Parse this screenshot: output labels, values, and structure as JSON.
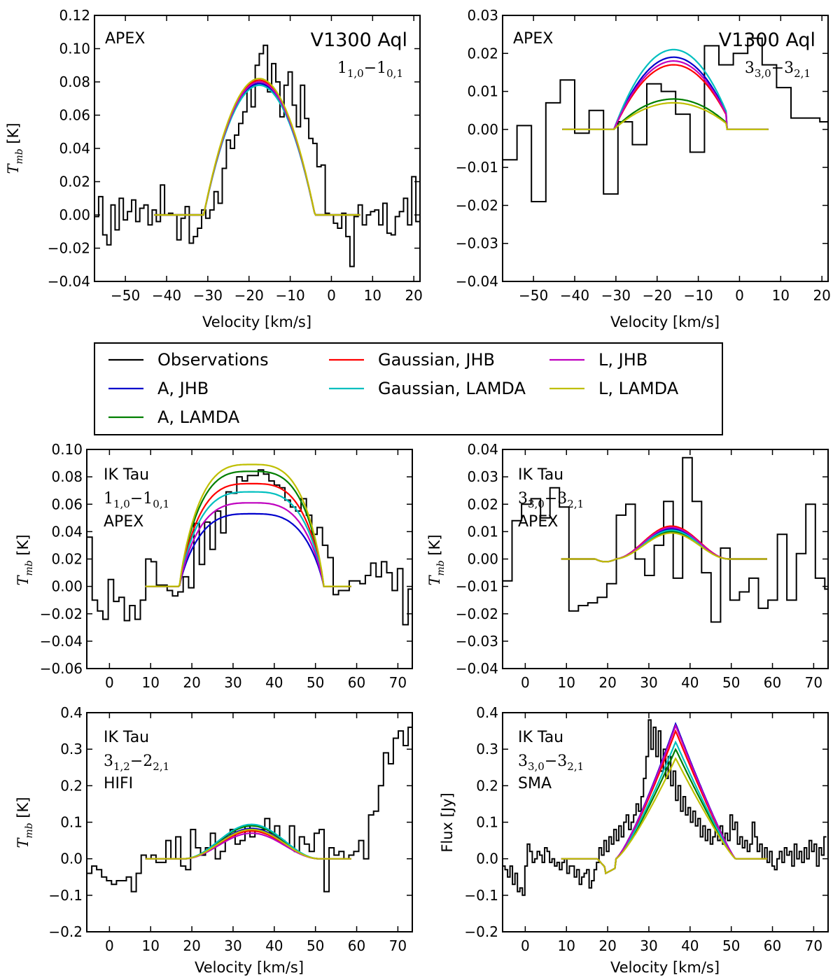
{
  "legend": {
    "items": [
      {
        "label": "Observations",
        "color": "#000000"
      },
      {
        "label": "A, JHB",
        "color": "#0000cc"
      },
      {
        "label": "A, LAMDA",
        "color": "#007f00"
      },
      {
        "label": "Gaussian, JHB",
        "color": "#ff0000"
      },
      {
        "label": "Gaussian, LAMDA",
        "color": "#00bfbf"
      },
      {
        "label": "L, JHB",
        "color": "#bf00bf"
      },
      {
        "label": "L, LAMDA",
        "color": "#bfbf00"
      }
    ]
  },
  "chart_data": [
    {
      "id": "v1300-110",
      "type": "line",
      "star": "V1300 Aql",
      "telescope": "APEX",
      "transition": {
        "a": "1",
        "asub": "1,0",
        "b": "1",
        "bsub": "0,1"
      },
      "xlabel": "Velocity [km/s]",
      "ylabel": {
        "main": "T",
        "sub": "mb",
        "unit": " [K]"
      },
      "xlim": [
        -57.5,
        21.5
      ],
      "ylim": [
        -0.04,
        0.12
      ],
      "xticks": [
        -50,
        -40,
        -30,
        -20,
        -10,
        0,
        10,
        20
      ],
      "yticks": [
        -0.04,
        -0.02,
        0.0,
        0.02,
        0.04,
        0.06,
        0.08,
        0.1,
        0.12
      ],
      "ytick_decimals": 2,
      "observations": {
        "x_start": -57.5,
        "x_step": 1.0,
        "values": [
          -0.001,
          0.011,
          -0.012,
          -0.018,
          0.006,
          -0.009,
          0.01,
          -0.003,
          0.002,
          0.009,
          -0.004,
          0.004,
          0.006,
          -0.006,
          0.003,
          -0.004,
          0.018,
          0.0,
          0.001,
          0.0,
          -0.015,
          -0.002,
          0.005,
          -0.017,
          -0.013,
          -0.008,
          0.003,
          -0.002,
          0.003,
          0.014,
          0.007,
          0.028,
          0.045,
          0.04,
          0.048,
          0.055,
          0.062,
          0.076,
          0.065,
          0.09,
          0.097,
          0.102,
          0.074,
          0.091,
          0.08,
          0.059,
          0.078,
          0.086,
          0.066,
          0.053,
          0.078,
          0.058,
          0.046,
          0.043,
          0.029,
          0.03,
          0.001,
          0.0,
          -0.005,
          -0.008,
          0.001,
          -0.013,
          -0.031,
          -0.001,
          0.006,
          -0.006,
          0.0,
          0.002,
          0.003,
          -0.006,
          0.007,
          -0.011,
          -0.012,
          -0.001,
          0.002,
          0.01,
          -0.006,
          0.023,
          -0.004,
          -0.018
        ]
      },
      "models": {
        "x_start": -43,
        "x_end": 7,
        "center": -17.5,
        "edge_left": -31,
        "edge_right": -4,
        "shape": "parabola",
        "peaks": {
          "A, JHB": 0.079,
          "A, LAMDA": 0.08,
          "Gaussian, JHB": 0.081,
          "Gaussian, LAMDA": 0.078,
          "L, JHB": 0.08,
          "L, LAMDA": 0.082
        }
      }
    },
    {
      "id": "v1300-330",
      "type": "line",
      "star": "V1300 Aql",
      "telescope": "APEX",
      "transition": {
        "a": "3",
        "asub": "3,0",
        "b": "3",
        "bsub": "2,1"
      },
      "xlabel": "Velocity [km/s]",
      "ylabel": null,
      "xlim": [
        -57.5,
        21.5
      ],
      "ylim": [
        -0.04,
        0.03
      ],
      "xticks": [
        -50,
        -40,
        -30,
        -20,
        -10,
        0,
        10,
        20
      ],
      "yticks": [
        -0.04,
        -0.03,
        -0.02,
        -0.01,
        0.0,
        0.01,
        0.02,
        0.03
      ],
      "ytick_decimals": 2,
      "observations": {
        "x_start": -57.5,
        "x_step": 3.5,
        "values": [
          -0.008,
          0.001,
          -0.019,
          0.007,
          0.013,
          -0.001,
          0.005,
          -0.017,
          0.002,
          -0.004,
          0.012,
          0.01,
          0.004,
          -0.006,
          0.022,
          0.017,
          0.02,
          0.024,
          0.017,
          0.011,
          0.003,
          0.003,
          0.002,
          -0.001,
          -0.023,
          -0.015,
          -0.006,
          -0.015,
          0.001,
          -0.018,
          0.015,
          0.01,
          -0.004,
          -0.003,
          -0.008
        ]
      },
      "models": {
        "x_start": -43,
        "x_end": 7,
        "center": -16,
        "edge_left": -32,
        "edge_right": -3,
        "shape": "parabola",
        "peaks": {
          "A, JHB": 0.019,
          "A, LAMDA": 0.008,
          "Gaussian, JHB": 0.017,
          "Gaussian, LAMDA": 0.021,
          "L, JHB": 0.018,
          "L, LAMDA": 0.007
        }
      }
    },
    {
      "id": "iktau-110",
      "type": "line",
      "star": "IK Tau",
      "telescope": "APEX",
      "transition": {
        "a": "1",
        "asub": "1,0",
        "b": "1",
        "bsub": "0,1"
      },
      "xlabel": "",
      "ylabel": {
        "main": "T",
        "sub": "mb",
        "unit": " [K]"
      },
      "xlim": [
        -5.5,
        73.5
      ],
      "ylim": [
        -0.06,
        0.1
      ],
      "xticks": [
        0,
        10,
        20,
        30,
        40,
        50,
        60,
        70
      ],
      "yticks": [
        -0.06,
        -0.04,
        -0.02,
        0.0,
        0.02,
        0.04,
        0.06,
        0.08,
        0.1
      ],
      "ytick_decimals": 2,
      "observations": {
        "x_start": -5.5,
        "x_step": 1.3,
        "values": [
          0.036,
          -0.01,
          -0.018,
          -0.024,
          0.005,
          -0.011,
          -0.008,
          -0.025,
          -0.014,
          -0.024,
          -0.01,
          0.02,
          0.018,
          0.001,
          0.001,
          -0.003,
          -0.007,
          -0.004,
          0.007,
          -0.001,
          0.046,
          0.016,
          0.047,
          0.027,
          0.055,
          0.039,
          0.069,
          0.068,
          0.08,
          0.077,
          0.081,
          0.081,
          0.085,
          0.082,
          0.077,
          0.074,
          0.072,
          0.063,
          0.058,
          0.055,
          0.064,
          0.052,
          0.038,
          0.043,
          0.03,
          0.021,
          -0.006,
          -0.003,
          -0.003,
          0.004,
          0.004,
          0.002,
          0.008,
          0.017,
          0.007,
          0.018,
          0.01,
          -0.003,
          0.013,
          -0.028,
          -0.002,
          0.021,
          0.011
        ]
      },
      "models": {
        "x_start": 8.7,
        "x_end": 58.7,
        "center": 34.5,
        "edge_left": 17,
        "edge_right": 52,
        "shape": "plateau",
        "peaks": {
          "A, JHB": 0.053,
          "A, LAMDA": 0.084,
          "Gaussian, JHB": 0.075,
          "Gaussian, LAMDA": 0.069,
          "L, JHB": 0.061,
          "L, LAMDA": 0.089
        }
      }
    },
    {
      "id": "iktau-330-apex",
      "type": "line",
      "star": "IK Tau",
      "telescope": "APEX",
      "transition": {
        "a": "3",
        "asub": "3,0",
        "b": "3",
        "bsub": "2,1"
      },
      "xlabel": "",
      "ylabel": {
        "main": "T",
        "sub": "mb",
        "unit": " [K]"
      },
      "xlim": [
        -5.5,
        73.5
      ],
      "ylim": [
        -0.04,
        0.04
      ],
      "xticks": [
        0,
        10,
        20,
        30,
        40,
        50,
        60,
        70
      ],
      "yticks": [
        -0.04,
        -0.03,
        -0.02,
        -0.01,
        0.0,
        0.01,
        0.02,
        0.03,
        0.04
      ],
      "ytick_decimals": 2,
      "observations": {
        "x_start": -5.5,
        "x_step": 2.3,
        "values": [
          -0.008,
          0.014,
          0.02,
          0.022,
          0.015,
          0.026,
          0.019,
          -0.019,
          -0.017,
          -0.016,
          -0.014,
          -0.009,
          0.016,
          0.02,
          0.0,
          -0.006,
          0.005,
          0.021,
          -0.007,
          0.037,
          0.021,
          -0.005,
          -0.023,
          0.004,
          -0.015,
          -0.012,
          -0.007,
          -0.018,
          -0.015,
          0.009,
          -0.015,
          0.002,
          0.02,
          -0.007,
          -0.011,
          0.006,
          -0.01,
          0.013,
          0.007,
          0.013,
          0.012,
          -0.001
        ]
      },
      "models": {
        "x_start": 8.7,
        "x_end": 58.7,
        "center": 35.5,
        "edge_left": 22,
        "edge_right": 50,
        "shape": "gauss",
        "dip": -0.001,
        "peaks": {
          "A, JHB": 0.011,
          "A, LAMDA": 0.01,
          "Gaussian, JHB": 0.012,
          "Gaussian, LAMDA": 0.0105,
          "L, JHB": 0.0115,
          "L, LAMDA": 0.0095
        }
      }
    },
    {
      "id": "iktau-312-hifi",
      "type": "line",
      "star": "IK Tau",
      "telescope": "HIFI",
      "transition": {
        "a": "3",
        "asub": "1,2",
        "b": "2",
        "bsub": "2,1"
      },
      "xlabel": "Velocity [km/s]",
      "ylabel": {
        "main": "T",
        "sub": "mb",
        "unit": " [K]"
      },
      "xlim": [
        -5.5,
        73.5
      ],
      "ylim": [
        -0.2,
        0.4
      ],
      "xticks": [
        0,
        10,
        20,
        30,
        40,
        50,
        60,
        70
      ],
      "yticks": [
        -0.2,
        -0.1,
        0.0,
        0.1,
        0.2,
        0.3,
        0.4
      ],
      "ytick_decimals": 1,
      "observations": {
        "x_start": -5.5,
        "x_step": 1.2,
        "values": [
          -0.04,
          -0.02,
          -0.03,
          -0.05,
          -0.06,
          -0.07,
          -0.06,
          -0.06,
          -0.05,
          -0.09,
          -0.04,
          0.01,
          0.0,
          0.01,
          -0.01,
          -0.01,
          0.05,
          0.0,
          0.06,
          -0.02,
          -0.03,
          0.08,
          0.03,
          0.01,
          0.03,
          0.07,
          0.0,
          0.02,
          0.06,
          0.08,
          0.04,
          0.05,
          0.09,
          0.06,
          0.08,
          0.08,
          0.11,
          0.07,
          0.09,
          0.05,
          0.04,
          0.09,
          0.02,
          0.06,
          0.04,
          0.02,
          0.07,
          0.08,
          -0.09,
          0.03,
          0.01,
          0.02,
          0.0,
          0.01,
          0.02,
          0.05,
          0.0,
          0.12,
          0.13,
          0.2,
          0.29,
          0.26,
          0.33,
          0.35,
          0.31,
          0.36,
          0.32,
          0.37,
          0.35,
          0.36,
          0.3,
          0.37,
          0.33,
          0.3,
          0.28
        ]
      },
      "models": {
        "x_start": 8.7,
        "x_end": 58.7,
        "center": 34.5,
        "edge_left": 18,
        "edge_right": 51,
        "shape": "gauss",
        "peaks": {
          "A, JHB": 0.083,
          "A, LAMDA": 0.09,
          "Gaussian, JHB": 0.076,
          "Gaussian, LAMDA": 0.094,
          "L, JHB": 0.07,
          "L, LAMDA": 0.08
        }
      }
    },
    {
      "id": "iktau-330-sma",
      "type": "line",
      "star": "IK Tau",
      "telescope": "SMA",
      "transition": {
        "a": "3",
        "asub": "3,0",
        "b": "3",
        "bsub": "2,1"
      },
      "xlabel": "Velocity [km/s]",
      "ylabel": {
        "main": "Flux [Jy]",
        "sub": "",
        "unit": ""
      },
      "xlim": [
        -5.5,
        73.5
      ],
      "ylim": [
        -0.2,
        0.4
      ],
      "xticks": [
        0,
        10,
        20,
        30,
        40,
        50,
        60,
        70
      ],
      "yticks": [
        -0.2,
        -0.1,
        0.0,
        0.1,
        0.2,
        0.3,
        0.4
      ],
      "ytick_decimals": 1,
      "observations": {
        "x_start": -5.5,
        "x_step": 0.6,
        "values": [
          -0.02,
          -0.03,
          -0.05,
          -0.02,
          -0.07,
          -0.04,
          -0.09,
          -0.08,
          -0.1,
          -0.02,
          0.04,
          0.02,
          -0.01,
          0.0,
          0.02,
          0.01,
          -0.01,
          0.03,
          0.02,
          -0.01,
          0.0,
          -0.02,
          -0.01,
          -0.03,
          -0.01,
          0.0,
          -0.04,
          -0.02,
          -0.02,
          -0.05,
          -0.03,
          -0.07,
          -0.05,
          -0.04,
          -0.03,
          -0.08,
          -0.06,
          -0.03,
          -0.01,
          0.03,
          0.01,
          0.05,
          0.02,
          0.06,
          0.04,
          0.08,
          0.05,
          0.09,
          0.06,
          0.1,
          0.12,
          0.08,
          0.1,
          0.12,
          0.15,
          0.13,
          0.17,
          0.22,
          0.28,
          0.38,
          0.3,
          0.36,
          0.28,
          0.35,
          0.24,
          0.3,
          0.22,
          0.28,
          0.2,
          0.24,
          0.16,
          0.2,
          0.13,
          0.17,
          0.12,
          0.14,
          0.1,
          0.13,
          0.09,
          0.11,
          0.06,
          0.09,
          0.05,
          0.08,
          0.04,
          0.06,
          0.08,
          0.05,
          0.09,
          0.04,
          0.07,
          0.05,
          0.12,
          0.08,
          0.1,
          0.04,
          0.06,
          0.03,
          0.05,
          0.02,
          0.04,
          0.1,
          0.06,
          0.02,
          0.04,
          0.0,
          0.03,
          -0.01,
          0.02,
          -0.02,
          -0.03,
          0.0,
          0.02,
          -0.01,
          0.03,
          0.01,
          0.02,
          -0.02,
          0.04,
          0.0,
          0.02,
          -0.01,
          0.03,
          0.0,
          0.05,
          0.02,
          0.04,
          -0.02,
          0.03,
          0.01,
          0.06
        ]
      },
      "models": {
        "x_start": 8.7,
        "x_end": 58.7,
        "shape": "triangle",
        "dip_x": 19.5,
        "dip": -0.025,
        "rise_x": 22,
        "peak_x": 36.5,
        "end_x": 51,
        "peaks": {
          "A, JHB": 0.37,
          "A, LAMDA": 0.3,
          "Gaussian, JHB": 0.35,
          "Gaussian, LAMDA": 0.32,
          "L, JHB": 0.365,
          "L, LAMDA": 0.275
        }
      }
    }
  ]
}
